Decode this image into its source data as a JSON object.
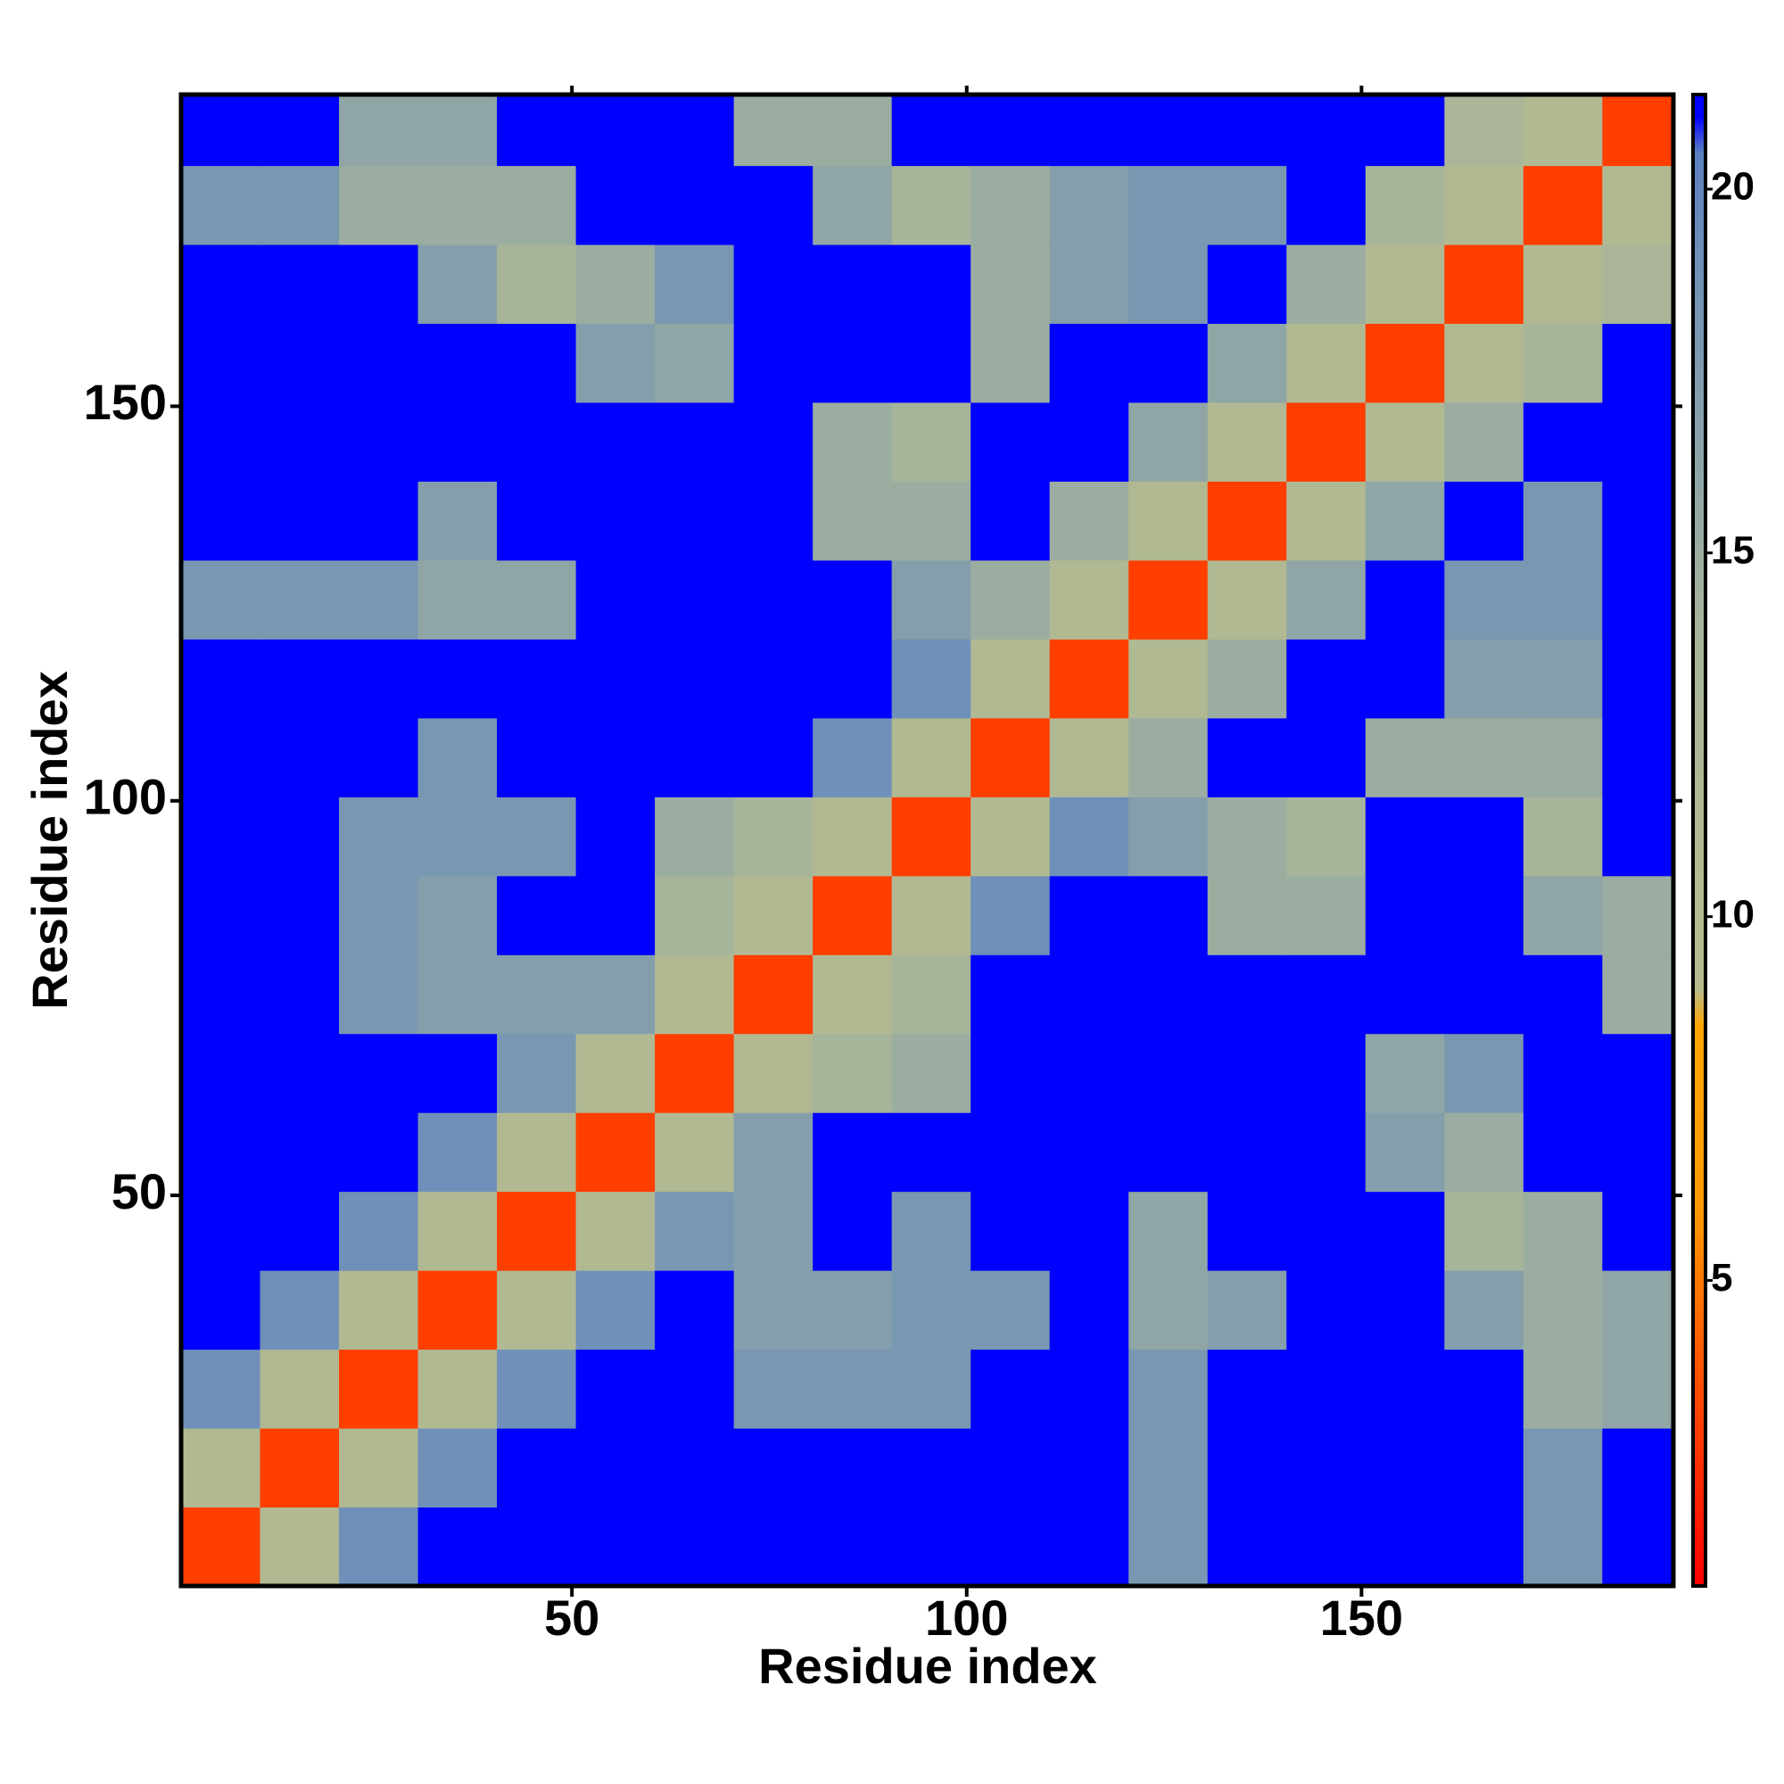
{
  "chart_data": {
    "type": "heatmap",
    "xlabel": "Residue index",
    "ylabel": "Residue index",
    "xlim": [
      0.5,
      189.5
    ],
    "ylim": [
      0.5,
      189.5
    ],
    "xticks": [
      50,
      100,
      150
    ],
    "yticks": [
      50,
      100,
      150
    ],
    "x_edges": [
      0.5,
      10.5,
      20.5,
      30.5,
      40.5,
      50.5,
      60.5,
      70.5,
      80.5,
      90.5,
      100.5,
      110.5,
      120.5,
      130.5,
      140.5,
      150.5,
      160.5,
      170.5,
      180.5,
      189.5
    ],
    "y_edges": [
      0.5,
      10.5,
      20.5,
      30.5,
      40.5,
      50.5,
      60.5,
      70.5,
      80.5,
      90.5,
      100.5,
      110.5,
      120.5,
      130.5,
      140.5,
      150.5,
      160.5,
      170.5,
      180.5,
      189.5
    ],
    "values": [
      [
        3,
        11,
        19,
        21,
        21,
        21,
        21,
        21,
        21,
        21,
        21,
        21,
        18,
        21,
        21,
        21,
        21,
        18,
        21
      ],
      [
        11,
        3,
        11,
        19,
        21,
        21,
        21,
        21,
        21,
        21,
        21,
        21,
        18,
        21,
        21,
        21,
        21,
        18,
        21
      ],
      [
        19,
        11,
        3,
        11,
        19,
        21,
        21,
        18,
        18,
        18,
        21,
        21,
        18,
        21,
        21,
        21,
        21,
        15,
        16
      ],
      [
        21,
        19,
        11,
        3,
        11,
        19,
        21,
        17,
        17,
        18,
        18,
        21,
        16,
        17,
        21,
        21,
        17,
        15,
        16
      ],
      [
        21,
        21,
        19,
        11,
        3,
        11,
        18,
        17,
        21,
        18,
        21,
        21,
        16,
        21,
        21,
        21,
        14,
        15,
        21
      ],
      [
        21,
        21,
        21,
        19,
        11,
        3,
        11,
        17,
        21,
        21,
        21,
        21,
        21,
        21,
        21,
        17,
        15,
        21,
        21
      ],
      [
        21,
        21,
        21,
        21,
        18,
        11,
        3,
        11,
        14,
        15,
        21,
        21,
        21,
        21,
        21,
        16,
        18,
        21,
        21
      ],
      [
        21,
        21,
        18,
        17,
        17,
        17,
        11,
        3,
        11,
        14,
        21,
        21,
        21,
        21,
        21,
        21,
        21,
        21,
        15
      ],
      [
        21,
        21,
        18,
        17,
        21,
        21,
        14,
        11,
        3,
        11,
        19,
        21,
        21,
        15,
        15,
        21,
        21,
        16,
        15
      ],
      [
        21,
        21,
        18,
        18,
        18,
        21,
        15,
        14,
        11,
        3,
        11,
        19,
        17,
        15,
        14,
        21,
        21,
        14,
        21
      ],
      [
        21,
        21,
        21,
        18,
        21,
        21,
        21,
        21,
        19,
        11,
        3,
        11,
        15,
        21,
        21,
        15,
        15,
        15,
        21
      ],
      [
        21,
        21,
        21,
        21,
        21,
        21,
        21,
        21,
        21,
        19,
        11,
        3,
        11,
        15,
        21,
        21,
        17,
        17,
        21
      ],
      [
        18,
        18,
        18,
        16,
        16,
        21,
        21,
        21,
        21,
        17,
        15,
        11,
        3,
        11,
        16,
        21,
        18,
        18,
        21
      ],
      [
        21,
        21,
        21,
        17,
        21,
        21,
        21,
        21,
        15,
        15,
        21,
        15,
        11,
        3,
        11,
        16,
        21,
        18,
        21
      ],
      [
        21,
        21,
        21,
        21,
        21,
        21,
        21,
        21,
        15,
        14,
        21,
        21,
        16,
        11,
        3,
        11,
        15,
        21,
        21
      ],
      [
        21,
        21,
        21,
        21,
        21,
        17,
        16,
        21,
        21,
        21,
        15,
        21,
        21,
        16,
        11,
        3,
        11,
        14,
        21
      ],
      [
        21,
        21,
        21,
        17,
        14,
        15,
        18,
        21,
        21,
        21,
        15,
        17,
        18,
        21,
        15,
        11,
        3,
        11,
        13
      ],
      [
        18,
        18,
        15,
        15,
        15,
        21,
        21,
        21,
        16,
        14,
        15,
        17,
        18,
        18,
        21,
        14,
        11,
        3,
        11
      ],
      [
        21,
        21,
        16,
        16,
        21,
        21,
        21,
        15,
        15,
        21,
        21,
        21,
        21,
        21,
        21,
        21,
        13,
        11,
        3
      ]
    ],
    "zlim": [
      0.8,
      21.3
    ],
    "zticks": [
      5,
      10,
      15,
      20
    ],
    "colorscale": [
      [
        0.8,
        "#ff0000"
      ],
      [
        4,
        "#ff5a00"
      ],
      [
        6,
        "#ff9900"
      ],
      [
        8.5,
        "#ffa500"
      ],
      [
        9,
        "#b8bc8c"
      ],
      [
        14,
        "#a6b49a"
      ],
      [
        19,
        "#6f90b8"
      ],
      [
        20.5,
        "#5a80c0"
      ],
      [
        21,
        "#0000ff"
      ],
      [
        21.3,
        "#0000ff"
      ]
    ]
  }
}
